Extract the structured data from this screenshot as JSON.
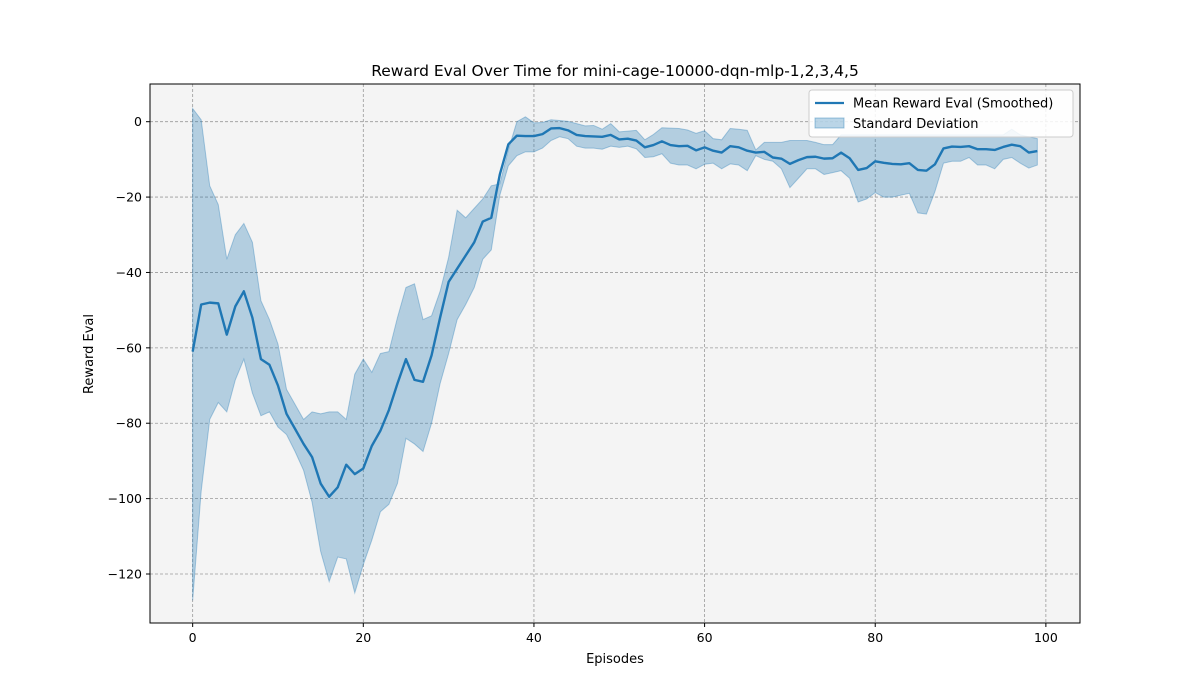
{
  "chart_data": {
    "type": "line",
    "title": "Reward Eval Over Time for mini-cage-10000-dqn-mlp-1,2,3,4,5",
    "xlabel": "Episodes",
    "ylabel": "Reward Eval",
    "xlim": [
      -5,
      104
    ],
    "ylim": [
      -133,
      10
    ],
    "xticks": [
      0,
      20,
      40,
      60,
      80,
      100
    ],
    "yticks": [
      -120,
      -100,
      -80,
      -60,
      -40,
      -20,
      0
    ],
    "grid": true,
    "legend_position": "top-right",
    "colors": {
      "line": "#1f77b4",
      "band": "#1f77b4",
      "plot_bg": "#f4f4f4",
      "grid": "#9a9a9a"
    },
    "series": [
      {
        "name": "Mean Reward Eval (Smoothed)",
        "kind": "line",
        "x": [
          0,
          1,
          2,
          3,
          4,
          5,
          6,
          7,
          8,
          9,
          10,
          11,
          12,
          13,
          14,
          15,
          16,
          17,
          18,
          19,
          20,
          21,
          22,
          23,
          24,
          25,
          26,
          27,
          28,
          29,
          30,
          31,
          32,
          33,
          34,
          35,
          36,
          37,
          38,
          39,
          40,
          41,
          42,
          43,
          44,
          45,
          46,
          47,
          48,
          49,
          50,
          51,
          52,
          53,
          54,
          55,
          56,
          57,
          58,
          59,
          60,
          61,
          62,
          63,
          64,
          65,
          66,
          67,
          68,
          69,
          70,
          71,
          72,
          73,
          74,
          75,
          76,
          77,
          78,
          79,
          80,
          81,
          82,
          83,
          84,
          85,
          86,
          87,
          88,
          89,
          90,
          91,
          92,
          93,
          94,
          95,
          96,
          97,
          98,
          99
        ],
        "y": [
          -61,
          -48.5,
          -48,
          -48.2,
          -56.5,
          -49,
          -45,
          -52,
          -63,
          -64.5,
          -70,
          -77.5,
          -81.5,
          -85.5,
          -89,
          -96,
          -99.5,
          -97,
          -91,
          -93.5,
          -92,
          -86,
          -82,
          -76.5,
          -69.5,
          -63,
          -68.5,
          -69,
          -62,
          -52,
          -42.5,
          -39,
          -35.5,
          -32,
          -26.5,
          -25.5,
          -14,
          -6,
          -3.7,
          -3.8,
          -3.8,
          -3.3,
          -1.8,
          -1.7,
          -2.3,
          -3.5,
          -3.8,
          -3.9,
          -4,
          -3.5,
          -4.7,
          -4.5,
          -5,
          -6.8,
          -6.2,
          -5.2,
          -6.2,
          -6.5,
          -6.4,
          -7.6,
          -6.8,
          -7.7,
          -8.2,
          -6.5,
          -6.8,
          -7.7,
          -8.2,
          -8,
          -9.5,
          -9.8,
          -11.2,
          -10.2,
          -9.4,
          -9.3,
          -9.8,
          -9.7,
          -8.2,
          -9.7,
          -12.8,
          -12.3,
          -10.5,
          -10.9,
          -11.2,
          -11.3,
          -11,
          -12.8,
          -13,
          -11.3,
          -7.1,
          -6.6,
          -6.7,
          -6.5,
          -7.3,
          -7.3,
          -7.5,
          -6.7,
          -6.1,
          -6.5,
          -8.2,
          -7.8
        ]
      },
      {
        "name": "Standard Deviation",
        "kind": "band",
        "upper": [
          3.5,
          0.5,
          -17,
          -22,
          -36.5,
          -30,
          -27,
          -32,
          -47.5,
          -52.5,
          -59,
          -71,
          -75,
          -79,
          -77,
          -77.5,
          -77,
          -77,
          -79,
          -67,
          -63,
          -66.5,
          -61.5,
          -61,
          -52,
          -44,
          -43,
          -52.5,
          -51.5,
          -45,
          -36,
          -23.5,
          -25.5,
          -23,
          -20.5,
          -17,
          -16.5,
          -7.5,
          0,
          1.3,
          -0.3,
          -0.2,
          0.5,
          0.3,
          0.1,
          -0.5,
          -1.1,
          -1,
          -2,
          -0.5,
          -2.7,
          -2.5,
          -2.3,
          -4.8,
          -3.4,
          -1.6,
          -1.7,
          -1.8,
          -2.2,
          -3.1,
          -2.4,
          -4.5,
          -4.8,
          -1.8,
          -2,
          -2.3,
          -7.5,
          -5.5,
          -5.5,
          -5.5,
          -5,
          -5,
          -5,
          -5.5,
          -6.1,
          -6.1,
          -3.5,
          -3.5,
          -3.5,
          -3.5,
          -3.5,
          -3.5,
          -3.5,
          -3.5,
          -3.5,
          -3.5,
          -3.5,
          -3.5,
          -3.5,
          -3.5,
          -3.5,
          -3.5,
          -3.5,
          -3.5,
          -3.5,
          -3.5,
          -2,
          -3.5,
          -4,
          -4.5
        ],
        "lower": [
          -127,
          -98,
          -79,
          -74.5,
          -77,
          -68.5,
          -63,
          -72,
          -78,
          -77,
          -81,
          -83,
          -87.5,
          -92.5,
          -101,
          -114,
          -122,
          -115.5,
          -116,
          -125,
          -117.5,
          -111,
          -103.5,
          -101.5,
          -96,
          -84,
          -85.5,
          -87.5,
          -80,
          -69.5,
          -61.5,
          -52.5,
          -48.5,
          -44,
          -36.5,
          -34,
          -19.5,
          -11.7,
          -9,
          -8,
          -8,
          -7,
          -5,
          -4,
          -4.5,
          -6.5,
          -7,
          -7,
          -7.3,
          -6.5,
          -6.8,
          -6.5,
          -7.2,
          -9.5,
          -9.3,
          -8.5,
          -11,
          -11.5,
          -11.5,
          -12.5,
          -11.3,
          -11,
          -12.5,
          -11.2,
          -11.5,
          -13,
          -9,
          -10,
          -10.5,
          -12.5,
          -17.5,
          -15,
          -12.5,
          -12.5,
          -14,
          -13.5,
          -13,
          -15,
          -21.3,
          -20.5,
          -18.8,
          -20,
          -20,
          -19.5,
          -19,
          -24.2,
          -24.5,
          -18.5,
          -11,
          -10.5,
          -10.5,
          -9.5,
          -11.5,
          -11.5,
          -12.5,
          -10,
          -9.5,
          -11,
          -12.3,
          -11.5
        ]
      }
    ]
  }
}
